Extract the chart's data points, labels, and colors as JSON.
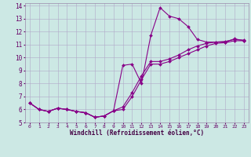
{
  "xlabel": "Windchill (Refroidissement éolien,°C)",
  "bg_color": "#cce8e4",
  "grid_color": "#b0a8c8",
  "line_color": "#880088",
  "xlim": [
    -0.5,
    23.5
  ],
  "ylim": [
    5,
    14.2
  ],
  "xticks": [
    0,
    1,
    2,
    3,
    4,
    5,
    6,
    7,
    8,
    9,
    10,
    11,
    12,
    13,
    14,
    15,
    16,
    17,
    18,
    19,
    20,
    21,
    22,
    23
  ],
  "yticks": [
    5,
    6,
    7,
    8,
    9,
    10,
    11,
    12,
    13,
    14
  ],
  "series1_x": [
    0,
    1,
    2,
    3,
    4,
    5,
    6,
    7,
    8,
    9,
    10,
    11,
    12,
    13,
    14,
    15,
    16,
    17,
    18,
    19,
    20,
    21,
    22,
    23
  ],
  "series1_y": [
    6.5,
    6.0,
    5.85,
    6.1,
    6.0,
    5.85,
    5.75,
    5.4,
    5.5,
    5.9,
    9.4,
    9.5,
    8.0,
    11.7,
    13.85,
    13.2,
    13.0,
    12.4,
    11.4,
    11.2,
    11.2,
    11.2,
    11.45,
    11.3
  ],
  "series2_x": [
    0,
    1,
    2,
    3,
    4,
    5,
    6,
    7,
    8,
    9,
    10,
    11,
    12,
    13,
    14,
    15,
    16,
    17,
    18,
    19,
    20,
    21,
    22,
    23
  ],
  "series2_y": [
    6.5,
    6.0,
    5.85,
    6.1,
    6.0,
    5.85,
    5.75,
    5.4,
    5.5,
    5.9,
    6.0,
    7.0,
    8.3,
    9.5,
    9.5,
    9.7,
    10.0,
    10.3,
    10.6,
    10.9,
    11.1,
    11.15,
    11.3,
    11.3
  ],
  "series3_x": [
    0,
    1,
    2,
    3,
    4,
    5,
    6,
    7,
    8,
    9,
    10,
    11,
    12,
    13,
    14,
    15,
    16,
    17,
    18,
    19,
    20,
    21,
    22,
    23
  ],
  "series3_y": [
    6.5,
    6.0,
    5.85,
    6.1,
    6.0,
    5.85,
    5.75,
    5.4,
    5.5,
    5.9,
    6.2,
    7.3,
    8.6,
    9.7,
    9.7,
    9.9,
    10.2,
    10.6,
    10.9,
    11.1,
    11.2,
    11.25,
    11.4,
    11.35
  ],
  "marker": "D",
  "markersize": 2.0,
  "linewidth": 0.8
}
